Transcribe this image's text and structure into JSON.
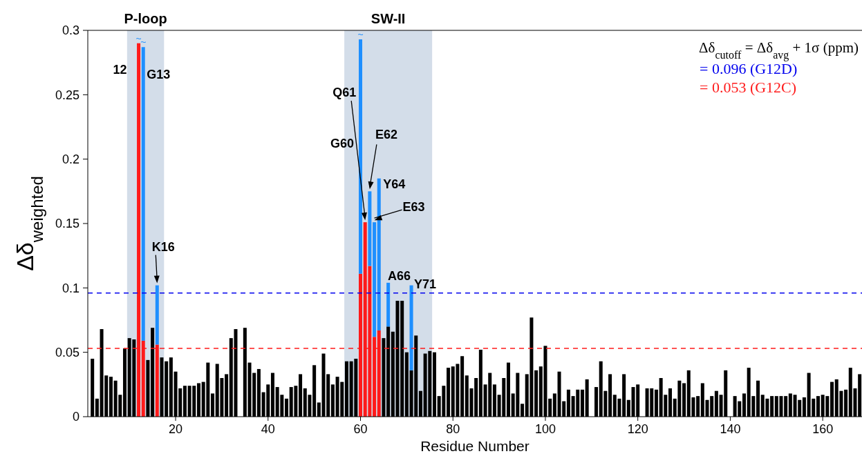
{
  "chart_data": {
    "type": "bar",
    "stacked": true,
    "xlabel": "Residue Number",
    "ylabel": "Δδ$_{weighted}$",
    "xlim": [
      1,
      168.5
    ],
    "xticks": [
      20,
      40,
      60,
      80,
      100,
      120,
      140,
      160
    ],
    "ylim": [
      0,
      0.3
    ],
    "yticks": [
      0,
      0.05,
      0.1,
      0.15,
      0.2,
      0.25,
      0.3
    ],
    "grid": false,
    "x": [
      2,
      3,
      4,
      5,
      6,
      7,
      8,
      9,
      10,
      11,
      12,
      13,
      14,
      15,
      16,
      17,
      18,
      19,
      20,
      21,
      22,
      23,
      24,
      25,
      26,
      27,
      28,
      29,
      30,
      31,
      32,
      33,
      35,
      36,
      37,
      38,
      39,
      40,
      41,
      42,
      43,
      44,
      45,
      46,
      47,
      48,
      49,
      50,
      51,
      52,
      53,
      54,
      55,
      56,
      57,
      58,
      59,
      60,
      61,
      62,
      63,
      64,
      65,
      66,
      67,
      68,
      69,
      70,
      71,
      72,
      73,
      74,
      75,
      76,
      77,
      78,
      79,
      80,
      81,
      82,
      83,
      84,
      85,
      86,
      87,
      88,
      89,
      90,
      91,
      92,
      93,
      94,
      95,
      96,
      97,
      98,
      99,
      100,
      101,
      102,
      103,
      104,
      105,
      106,
      107,
      108,
      109,
      111,
      112,
      113,
      114,
      115,
      116,
      117,
      118,
      119,
      120,
      122,
      123,
      124,
      125,
      126,
      127,
      128,
      129,
      130,
      131,
      132,
      133,
      134,
      135,
      136,
      137,
      138,
      139,
      141,
      142,
      143,
      144,
      145,
      146,
      147,
      148,
      149,
      150,
      151,
      152,
      153,
      154,
      155,
      156,
      157,
      158,
      159,
      160,
      161,
      162,
      163,
      164,
      165,
      166,
      167,
      168
    ],
    "series": [
      {
        "color": "#000000",
        "values": [
          0.045,
          0.014,
          0.068,
          0.032,
          0.031,
          0.028,
          0.017,
          0.053,
          0.061,
          0.06,
          null,
          null,
          0.044,
          0.069,
          null,
          0.046,
          0.043,
          0.046,
          0.035,
          0.022,
          0.024,
          0.024,
          0.024,
          0.026,
          0.027,
          0.042,
          0.018,
          0.041,
          0.03,
          0.033,
          0.061,
          0.068,
          0.069,
          0.042,
          0.034,
          0.037,
          0.019,
          0.025,
          0.034,
          0.023,
          0.017,
          0.014,
          0.023,
          0.024,
          0.033,
          0.022,
          0.017,
          0.04,
          0.011,
          0.049,
          0.033,
          0.025,
          0.031,
          0.027,
          0.043,
          0.043,
          0.045,
          null,
          null,
          null,
          null,
          null,
          0.061,
          0.07,
          0.066,
          0.09,
          0.09,
          0.05,
          0.036,
          0.063,
          0.02,
          0.049,
          0.051,
          0.05,
          0.016,
          0.024,
          0.038,
          0.039,
          0.041,
          0.047,
          0.032,
          0.022,
          0.03,
          0.052,
          0.025,
          0.034,
          0.025,
          0.017,
          0.03,
          0.042,
          0.018,
          0.034,
          0.01,
          0.033,
          0.077,
          0.036,
          0.039,
          0.055,
          0.014,
          0.018,
          0.035,
          0.012,
          0.021,
          0.016,
          0.021,
          0.021,
          0.029,
          0.023,
          0.043,
          0.02,
          0.033,
          0.017,
          0.014,
          0.033,
          0.013,
          0.023,
          0.025,
          0.022,
          0.022,
          0.021,
          0.03,
          0.017,
          0.022,
          0.014,
          0.028,
          0.026,
          0.036,
          0.015,
          0.016,
          0.026,
          0.013,
          0.016,
          0.02,
          0.017,
          0.036,
          0.016,
          0.012,
          0.018,
          0.038,
          0.016,
          0.028,
          0.017,
          0.014,
          0.016,
          0.016,
          0.016,
          0.016,
          0.018,
          0.017,
          0.013,
          0.015,
          0.034,
          0.014,
          0.016,
          0.017,
          0.016,
          0.027,
          0.029,
          0.02,
          0.021,
          0.038,
          0.022,
          0.033
        ]
      },
      {
        "color": "#ff1a1a",
        "values": [
          null,
          null,
          null,
          null,
          null,
          null,
          null,
          null,
          null,
          null,
          0.29,
          0.059,
          null,
          null,
          0.056,
          null,
          null,
          null,
          null,
          null,
          null,
          null,
          null,
          null,
          null,
          null,
          null,
          null,
          null,
          null,
          null,
          null,
          null,
          null,
          null,
          null,
          null,
          null,
          null,
          null,
          null,
          null,
          null,
          null,
          null,
          null,
          null,
          null,
          null,
          null,
          null,
          null,
          null,
          null,
          null,
          null,
          null,
          0.111,
          0.151,
          0.117,
          0.062,
          0.067,
          null,
          null,
          null,
          null,
          null,
          null,
          null,
          null,
          null,
          null,
          null,
          null,
          null,
          null,
          null,
          null,
          null,
          null,
          null,
          null,
          null,
          null,
          null,
          null,
          null,
          null,
          null,
          null,
          null,
          null,
          null,
          null,
          null,
          null,
          null,
          null,
          null,
          null,
          null,
          null,
          null,
          null,
          null,
          null,
          null,
          null,
          null,
          null,
          null,
          null,
          null,
          null,
          null,
          null,
          null,
          null,
          null,
          null,
          null,
          null,
          null,
          null,
          null,
          null,
          null,
          null,
          null,
          null,
          null,
          null,
          null,
          null,
          null,
          null,
          null,
          null,
          null,
          null,
          null,
          null,
          null,
          null,
          null,
          null,
          null,
          null,
          null,
          null,
          null,
          null,
          null,
          null,
          null,
          null,
          null,
          null,
          null,
          null,
          null,
          null,
          null
        ]
      },
      {
        "color": "#1e8fff",
        "values": [
          null,
          null,
          null,
          null,
          null,
          null,
          null,
          null,
          null,
          null,
          null,
          0.228,
          null,
          null,
          0.046,
          null,
          null,
          null,
          null,
          null,
          null,
          null,
          null,
          null,
          null,
          null,
          null,
          null,
          null,
          null,
          null,
          null,
          null,
          null,
          null,
          null,
          null,
          null,
          null,
          null,
          null,
          null,
          null,
          null,
          null,
          null,
          null,
          null,
          null,
          null,
          null,
          null,
          null,
          null,
          null,
          null,
          null,
          0.182,
          null,
          0.058,
          0.089,
          0.118,
          null,
          0.034,
          null,
          null,
          null,
          null,
          0.066,
          null,
          null,
          null,
          null,
          null,
          null,
          null,
          null,
          null,
          null,
          null,
          null,
          null,
          null,
          null,
          null,
          null,
          null,
          null,
          null,
          null,
          null,
          null,
          null,
          null,
          null,
          null,
          null,
          null,
          null,
          null,
          null,
          null,
          null,
          null,
          null,
          null,
          null,
          null,
          null,
          null,
          null,
          null,
          null,
          null,
          null,
          null,
          null,
          null,
          null,
          null,
          null,
          null,
          null,
          null,
          null,
          null,
          null,
          null,
          null,
          null,
          null,
          null,
          null,
          null,
          null,
          null,
          null,
          null,
          null,
          null,
          null,
          null,
          null,
          null,
          null,
          null,
          null,
          null,
          null,
          null,
          null,
          null,
          null,
          null,
          null,
          null,
          null,
          null,
          null,
          null,
          null,
          null,
          null
        ]
      }
    ],
    "bands": [
      {
        "axis": "x",
        "from": 9.5,
        "to": 17.5,
        "label": "P-loop",
        "color": "#d3dde9"
      },
      {
        "axis": "x",
        "from": 56.5,
        "to": 75.5,
        "label": "SW-II",
        "color": "#d3dde9"
      }
    ],
    "ref_lines": [
      {
        "axis": "y",
        "value": 0.096,
        "label": "= 0.096 (G12D)",
        "color": "#0000ee",
        "line_style": "dashed"
      },
      {
        "axis": "y",
        "value": 0.053,
        "label": "= 0.053 (G12C)",
        "color": "#ff1a1a",
        "line_style": "dashed"
      }
    ],
    "annotations": [
      "Δδ$_{cutoff}$ = Δδ$_{avg}$ + 1σ  (ppm)",
      {
        "text": "~",
        "x": 12,
        "y": 0.29
      },
      {
        "text": "~",
        "x": 13,
        "y": 0.287
      },
      {
        "text": "~",
        "x": 60,
        "y": 0.293
      },
      {
        "text": "12",
        "x": 12,
        "y": 0.29
      },
      {
        "text": "G13",
        "x": 13,
        "y": 0.287
      },
      {
        "text": "K16",
        "x": 16,
        "y": 0.102
      },
      "G60",
      {
        "text": "Q61",
        "x": 61,
        "y": 0.151
      },
      {
        "text": "E62",
        "x": 62,
        "y": 0.175
      },
      {
        "text": "Y64",
        "x": 64,
        "y": 0.185
      },
      {
        "text": "E63",
        "x": 63,
        "y": 0.151
      },
      {
        "text": "A66",
        "x": 66,
        "y": 0.104
      },
      {
        "text": "Y71",
        "x": 71,
        "y": 0.102
      }
    ]
  }
}
